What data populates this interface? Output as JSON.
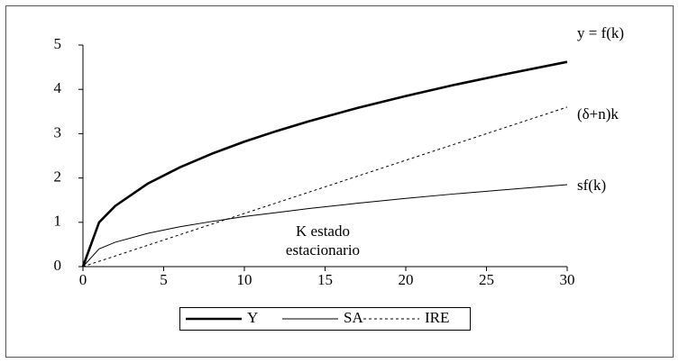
{
  "chart_data": {
    "type": "line",
    "x": [
      0,
      1,
      2,
      4,
      6,
      8,
      10,
      12,
      14,
      17,
      20,
      23,
      26,
      30
    ],
    "series": [
      {
        "name": "Y",
        "color": "#000000",
        "line_width": 2.6,
        "line_style": "solid",
        "values": [
          0,
          1,
          1.37,
          1.87,
          2.24,
          2.55,
          2.82,
          3.06,
          3.28,
          3.58,
          3.85,
          4.1,
          4.33,
          4.62
        ]
      },
      {
        "name": "SA",
        "color": "#000000",
        "line_width": 1,
        "line_style": "solid",
        "values": [
          0,
          0.4,
          0.55,
          0.75,
          0.9,
          1.02,
          1.13,
          1.22,
          1.31,
          1.43,
          1.54,
          1.64,
          1.73,
          1.85
        ]
      },
      {
        "name": "IRE",
        "color": "#000000",
        "line_width": 1,
        "line_style": "dashed",
        "values": [
          0,
          0.12,
          0.24,
          0.48,
          0.72,
          0.96,
          1.2,
          1.44,
          1.68,
          2.04,
          2.4,
          2.76,
          3.12,
          3.6
        ]
      }
    ],
    "xlim": [
      0,
      30
    ],
    "xticks": [
      0,
      5,
      10,
      15,
      20,
      25,
      30
    ],
    "ylim": [
      0,
      5
    ],
    "yticks": [
      0,
      1,
      2,
      3,
      4,
      5
    ],
    "annotations": [
      {
        "text": "y = f(k)"
      },
      {
        "text": "(δ+n)k"
      },
      {
        "text": "sf(k)"
      },
      {
        "lines": [
          "K estado",
          "estacionario"
        ]
      }
    ],
    "legend": "bottom"
  }
}
